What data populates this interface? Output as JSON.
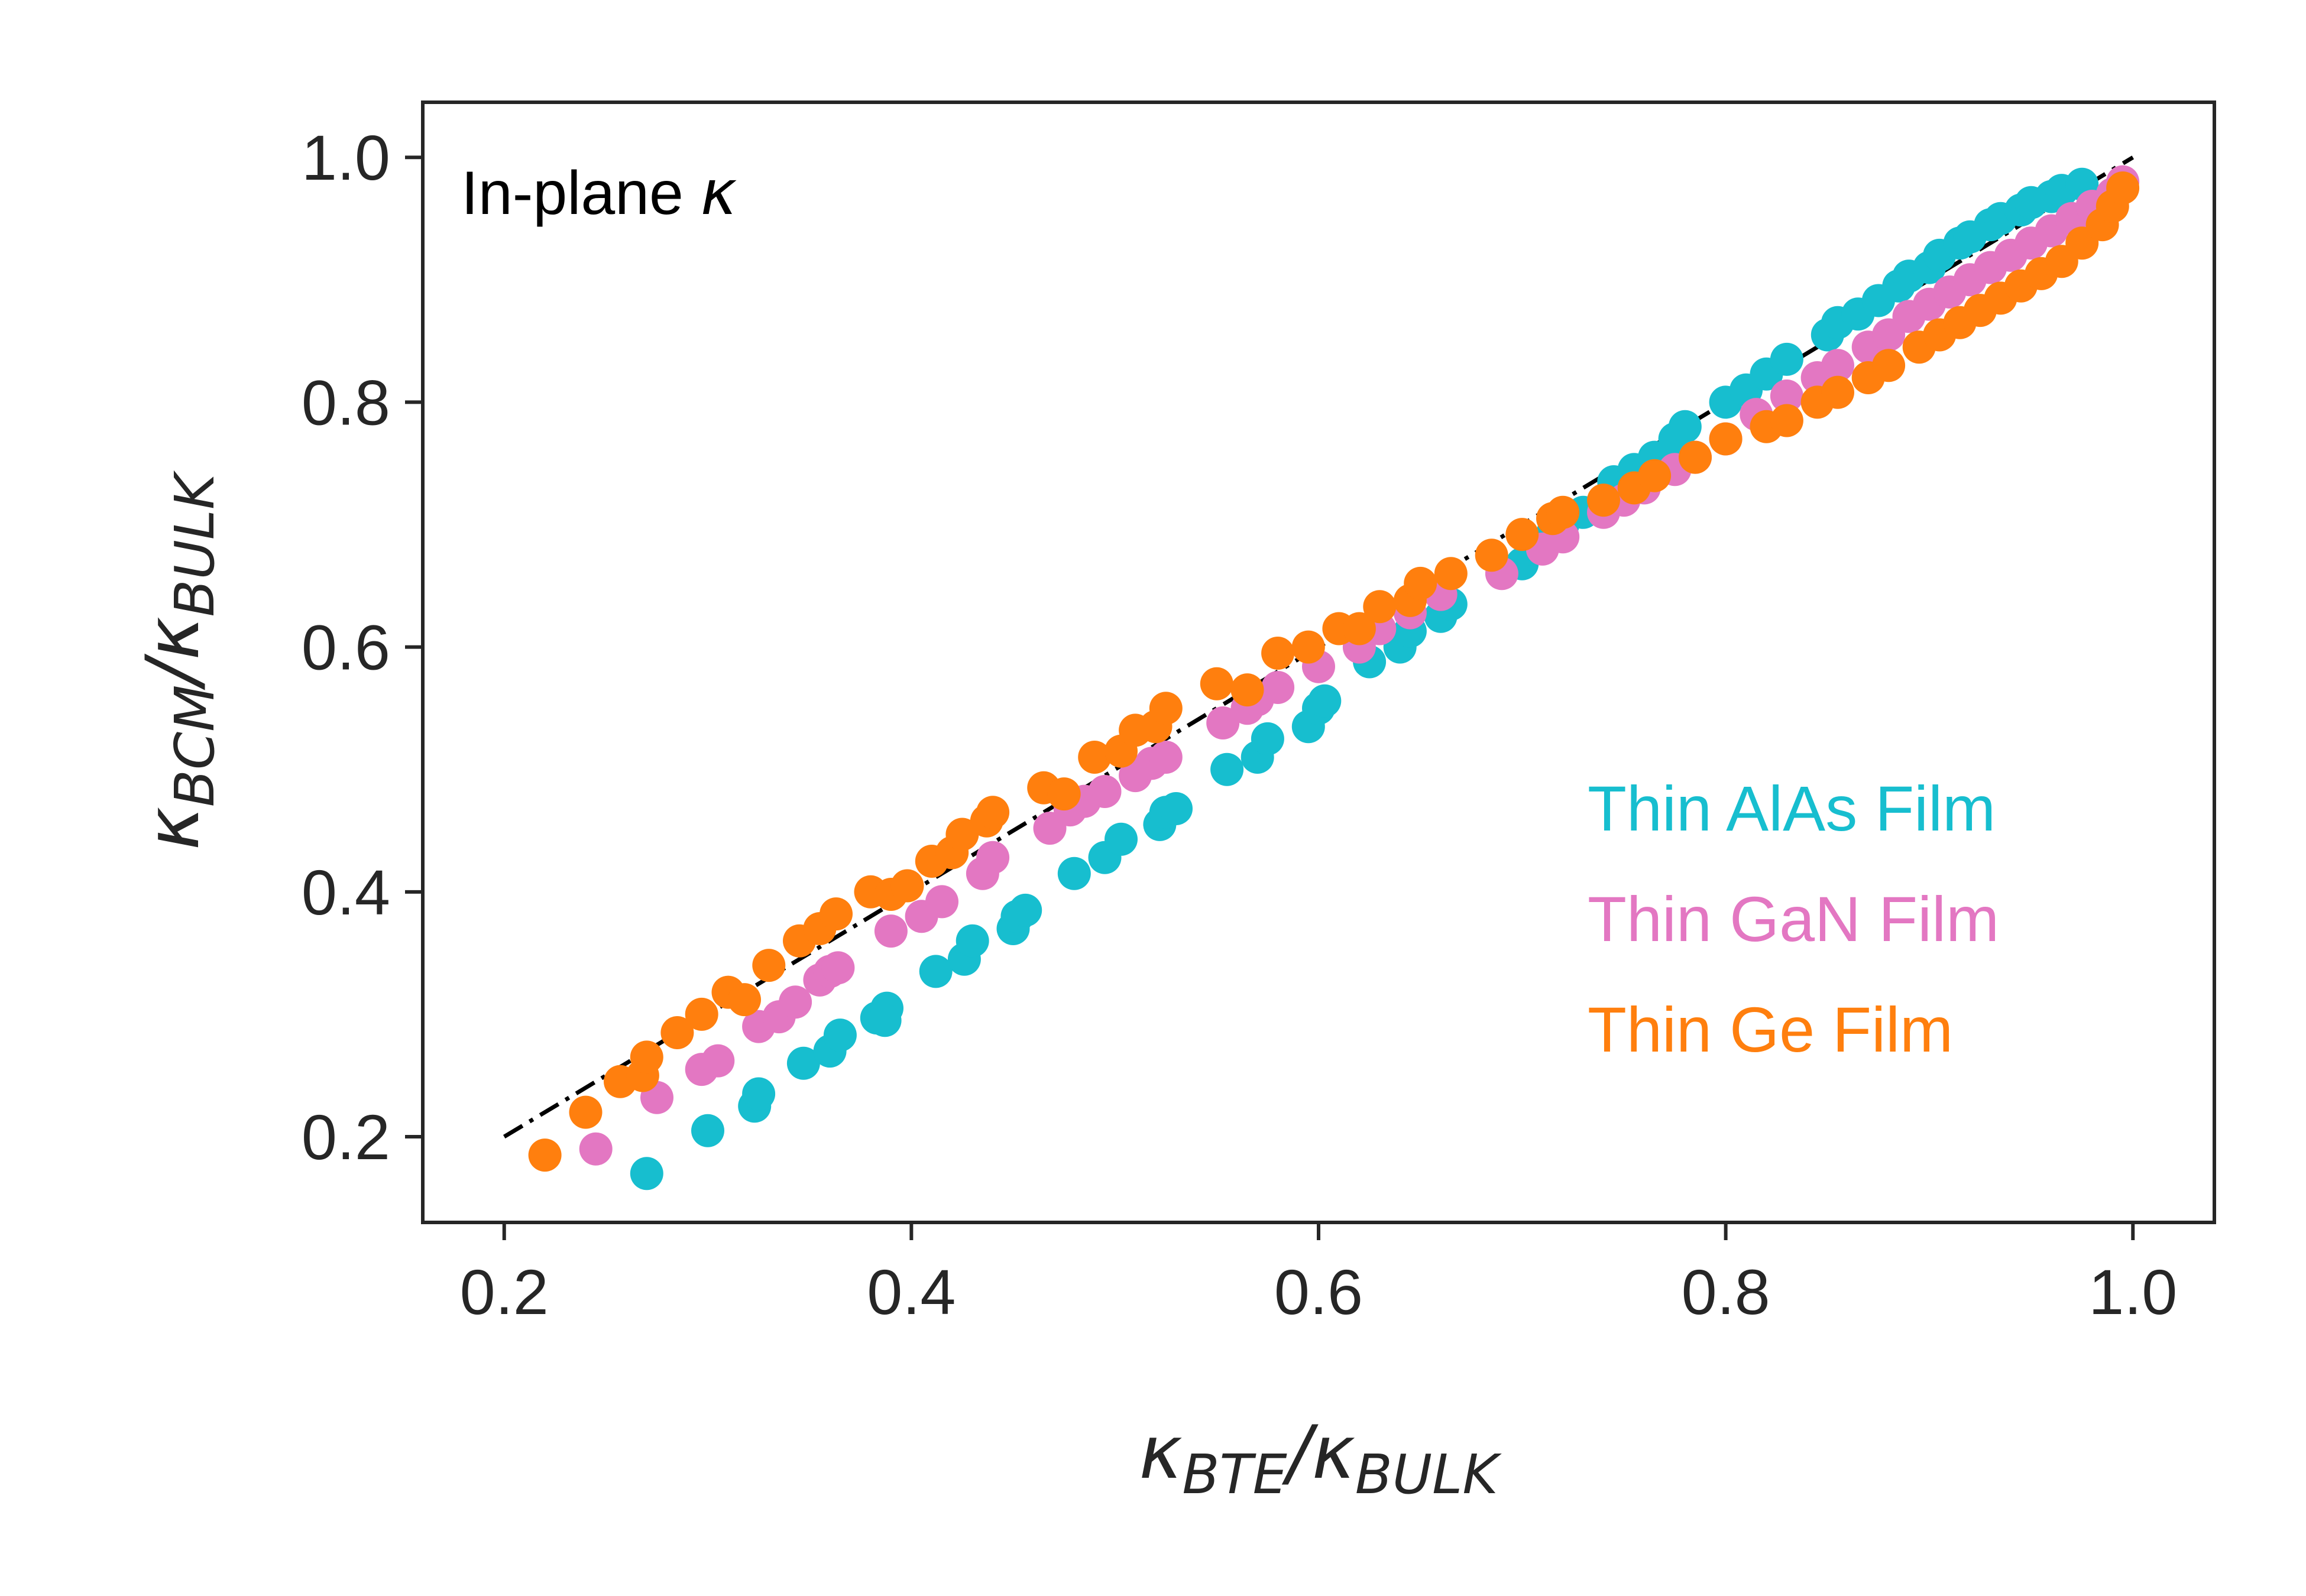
{
  "chart_data": {
    "type": "scatter",
    "annotation": {
      "text": "In-plane ",
      "symbol": "κ"
    },
    "xlabel": {
      "symbol": "κ",
      "sub1": "BTE",
      "slash": "/",
      "symbol2": "κ",
      "sub2": "BULK"
    },
    "ylabel": {
      "symbol": "κ",
      "sub1": "BCM",
      "slash": "/",
      "symbol2": "κ",
      "sub2": "BULK"
    },
    "xlim": [
      0.16,
      1.04
    ],
    "ylim": [
      0.13,
      1.045
    ],
    "xticks": [
      "0.2",
      "0.4",
      "0.6",
      "0.8",
      "1.0"
    ],
    "yticks": [
      "0.2",
      "0.4",
      "0.6",
      "0.8",
      "1.0"
    ],
    "legend_position": "center-right",
    "grid": false,
    "reference_line": {
      "x": [
        0.2,
        1.0
      ],
      "y": [
        0.2,
        1.0
      ],
      "style": "dash-dot",
      "color": "#000000"
    },
    "series": [
      {
        "name": "Thin AlAs Film",
        "color": "#17becf",
        "points": [
          [
            0.27,
            0.17
          ],
          [
            0.3,
            0.205
          ],
          [
            0.323,
            0.225
          ],
          [
            0.325,
            0.235
          ],
          [
            0.347,
            0.26
          ],
          [
            0.36,
            0.27
          ],
          [
            0.365,
            0.283
          ],
          [
            0.383,
            0.297
          ],
          [
            0.388,
            0.305
          ],
          [
            0.387,
            0.295
          ],
          [
            0.412,
            0.335
          ],
          [
            0.426,
            0.345
          ],
          [
            0.43,
            0.36
          ],
          [
            0.45,
            0.37
          ],
          [
            0.452,
            0.38
          ],
          [
            0.456,
            0.385
          ],
          [
            0.48,
            0.415
          ],
          [
            0.495,
            0.428
          ],
          [
            0.503,
            0.443
          ],
          [
            0.522,
            0.455
          ],
          [
            0.525,
            0.465
          ],
          [
            0.53,
            0.468
          ],
          [
            0.555,
            0.5
          ],
          [
            0.57,
            0.51
          ],
          [
            0.575,
            0.525
          ],
          [
            0.595,
            0.535
          ],
          [
            0.6,
            0.55
          ],
          [
            0.603,
            0.556
          ],
          [
            0.625,
            0.588
          ],
          [
            0.64,
            0.6
          ],
          [
            0.645,
            0.613
          ],
          [
            0.66,
            0.625
          ],
          [
            0.665,
            0.635
          ],
          [
            0.7,
            0.668
          ],
          [
            0.705,
            0.68
          ],
          [
            0.715,
            0.693
          ],
          [
            0.72,
            0.7
          ],
          [
            0.73,
            0.71
          ],
          [
            0.745,
            0.735
          ],
          [
            0.755,
            0.745
          ],
          [
            0.765,
            0.755
          ],
          [
            0.775,
            0.77
          ],
          [
            0.78,
            0.78
          ],
          [
            0.8,
            0.8
          ],
          [
            0.81,
            0.81
          ],
          [
            0.82,
            0.823
          ],
          [
            0.83,
            0.835
          ],
          [
            0.85,
            0.855
          ],
          [
            0.855,
            0.865
          ],
          [
            0.865,
            0.872
          ],
          [
            0.875,
            0.883
          ],
          [
            0.885,
            0.895
          ],
          [
            0.89,
            0.903
          ],
          [
            0.9,
            0.91
          ],
          [
            0.905,
            0.92
          ],
          [
            0.915,
            0.93
          ],
          [
            0.92,
            0.935
          ],
          [
            0.93,
            0.945
          ],
          [
            0.935,
            0.95
          ],
          [
            0.945,
            0.957
          ],
          [
            0.95,
            0.963
          ],
          [
            0.96,
            0.968
          ],
          [
            0.965,
            0.973
          ],
          [
            0.975,
            0.978
          ]
        ]
      },
      {
        "name": "Thin GaN Film",
        "color": "#e377c2",
        "points": [
          [
            0.245,
            0.19
          ],
          [
            0.275,
            0.232
          ],
          [
            0.297,
            0.255
          ],
          [
            0.305,
            0.262
          ],
          [
            0.325,
            0.29
          ],
          [
            0.335,
            0.298
          ],
          [
            0.343,
            0.31
          ],
          [
            0.355,
            0.328
          ],
          [
            0.36,
            0.335
          ],
          [
            0.364,
            0.338
          ],
          [
            0.39,
            0.368
          ],
          [
            0.405,
            0.38
          ],
          [
            0.415,
            0.392
          ],
          [
            0.435,
            0.415
          ],
          [
            0.44,
            0.428
          ],
          [
            0.468,
            0.452
          ],
          [
            0.478,
            0.467
          ],
          [
            0.485,
            0.474
          ],
          [
            0.495,
            0.482
          ],
          [
            0.51,
            0.495
          ],
          [
            0.518,
            0.505
          ],
          [
            0.525,
            0.51
          ],
          [
            0.553,
            0.538
          ],
          [
            0.565,
            0.55
          ],
          [
            0.57,
            0.557
          ],
          [
            0.58,
            0.567
          ],
          [
            0.6,
            0.584
          ],
          [
            0.62,
            0.6
          ],
          [
            0.63,
            0.615
          ],
          [
            0.645,
            0.628
          ],
          [
            0.66,
            0.643
          ],
          [
            0.69,
            0.66
          ],
          [
            0.71,
            0.68
          ],
          [
            0.72,
            0.69
          ],
          [
            0.74,
            0.71
          ],
          [
            0.75,
            0.72
          ],
          [
            0.76,
            0.73
          ],
          [
            0.775,
            0.745
          ],
          [
            0.785,
            0.755
          ],
          [
            0.8,
            0.77
          ],
          [
            0.815,
            0.79
          ],
          [
            0.83,
            0.805
          ],
          [
            0.845,
            0.82
          ],
          [
            0.855,
            0.83
          ],
          [
            0.87,
            0.845
          ],
          [
            0.88,
            0.855
          ],
          [
            0.89,
            0.87
          ],
          [
            0.9,
            0.88
          ],
          [
            0.91,
            0.89
          ],
          [
            0.92,
            0.9
          ],
          [
            0.93,
            0.91
          ],
          [
            0.94,
            0.92
          ],
          [
            0.95,
            0.93
          ],
          [
            0.96,
            0.94
          ],
          [
            0.97,
            0.95
          ],
          [
            0.98,
            0.96
          ],
          [
            0.99,
            0.97
          ],
          [
            0.995,
            0.98
          ]
        ]
      },
      {
        "name": "Thin Ge Film",
        "color": "#ff7f0e",
        "points": [
          [
            0.22,
            0.185
          ],
          [
            0.24,
            0.22
          ],
          [
            0.257,
            0.245
          ],
          [
            0.268,
            0.25
          ],
          [
            0.27,
            0.265
          ],
          [
            0.285,
            0.285
          ],
          [
            0.297,
            0.3
          ],
          [
            0.31,
            0.318
          ],
          [
            0.318,
            0.312
          ],
          [
            0.33,
            0.34
          ],
          [
            0.345,
            0.36
          ],
          [
            0.355,
            0.37
          ],
          [
            0.363,
            0.382
          ],
          [
            0.38,
            0.4
          ],
          [
            0.39,
            0.398
          ],
          [
            0.398,
            0.405
          ],
          [
            0.41,
            0.425
          ],
          [
            0.42,
            0.432
          ],
          [
            0.425,
            0.447
          ],
          [
            0.437,
            0.458
          ],
          [
            0.44,
            0.465
          ],
          [
            0.465,
            0.485
          ],
          [
            0.475,
            0.48
          ],
          [
            0.49,
            0.51
          ],
          [
            0.503,
            0.515
          ],
          [
            0.51,
            0.532
          ],
          [
            0.52,
            0.535
          ],
          [
            0.525,
            0.55
          ],
          [
            0.55,
            0.57
          ],
          [
            0.565,
            0.565
          ],
          [
            0.58,
            0.595
          ],
          [
            0.595,
            0.6
          ],
          [
            0.61,
            0.615
          ],
          [
            0.62,
            0.615
          ],
          [
            0.63,
            0.633
          ],
          [
            0.645,
            0.638
          ],
          [
            0.65,
            0.652
          ],
          [
            0.665,
            0.66
          ],
          [
            0.685,
            0.675
          ],
          [
            0.7,
            0.692
          ],
          [
            0.715,
            0.705
          ],
          [
            0.72,
            0.71
          ],
          [
            0.74,
            0.72
          ],
          [
            0.755,
            0.73
          ],
          [
            0.765,
            0.74
          ],
          [
            0.785,
            0.755
          ],
          [
            0.8,
            0.77
          ],
          [
            0.82,
            0.78
          ],
          [
            0.83,
            0.785
          ],
          [
            0.845,
            0.8
          ],
          [
            0.855,
            0.808
          ],
          [
            0.87,
            0.82
          ],
          [
            0.88,
            0.83
          ],
          [
            0.895,
            0.845
          ],
          [
            0.905,
            0.855
          ],
          [
            0.915,
            0.865
          ],
          [
            0.925,
            0.875
          ],
          [
            0.935,
            0.885
          ],
          [
            0.945,
            0.895
          ],
          [
            0.955,
            0.905
          ],
          [
            0.965,
            0.915
          ],
          [
            0.975,
            0.93
          ],
          [
            0.985,
            0.945
          ],
          [
            0.99,
            0.96
          ],
          [
            0.995,
            0.975
          ]
        ]
      }
    ]
  }
}
